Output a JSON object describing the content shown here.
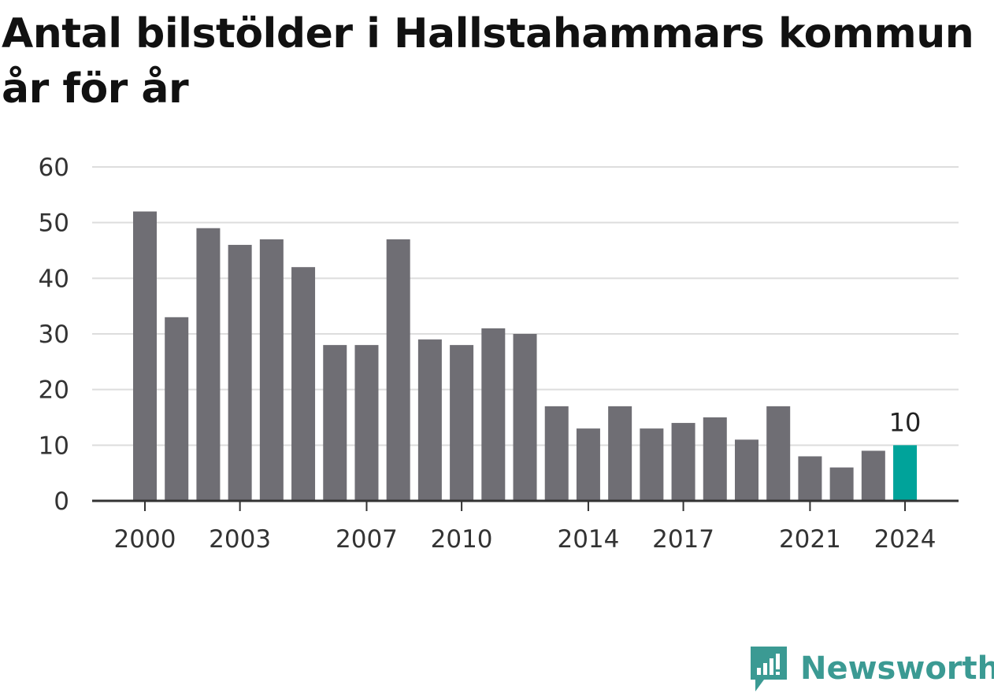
{
  "title": "Antal bilstölder i Hallstahammars kommun år för år",
  "brand": {
    "name": "Newsworthy",
    "icon": "newsworthy-logo-icon"
  },
  "colors": {
    "bar": "#6f6e74",
    "highlight": "#00a39a",
    "grid": "#dddddd",
    "axis": "#333333",
    "text": "#333333",
    "brand": "#3b9a93"
  },
  "chart_data": {
    "type": "bar",
    "title": "Antal bilstölder i Hallstahammars kommun år för år",
    "xlabel": "",
    "ylabel": "",
    "categories": [
      "2000",
      "2001",
      "2002",
      "2003",
      "2004",
      "2005",
      "2006",
      "2007",
      "2008",
      "2009",
      "2010",
      "2011",
      "2012",
      "2013",
      "2014",
      "2015",
      "2016",
      "2017",
      "2018",
      "2019",
      "2020",
      "2021",
      "2022",
      "2023",
      "2024"
    ],
    "values": [
      52,
      33,
      49,
      46,
      47,
      42,
      28,
      28,
      47,
      29,
      28,
      31,
      30,
      17,
      13,
      17,
      13,
      14,
      15,
      11,
      17,
      8,
      6,
      9,
      10
    ],
    "ylim": [
      0,
      60
    ],
    "yticks": [
      0,
      10,
      20,
      30,
      40,
      50,
      60
    ],
    "xticks": [
      "2000",
      "2003",
      "2007",
      "2010",
      "2014",
      "2017",
      "2021",
      "2024"
    ],
    "highlight": {
      "category": "2024",
      "label": "10"
    },
    "grid": true
  }
}
